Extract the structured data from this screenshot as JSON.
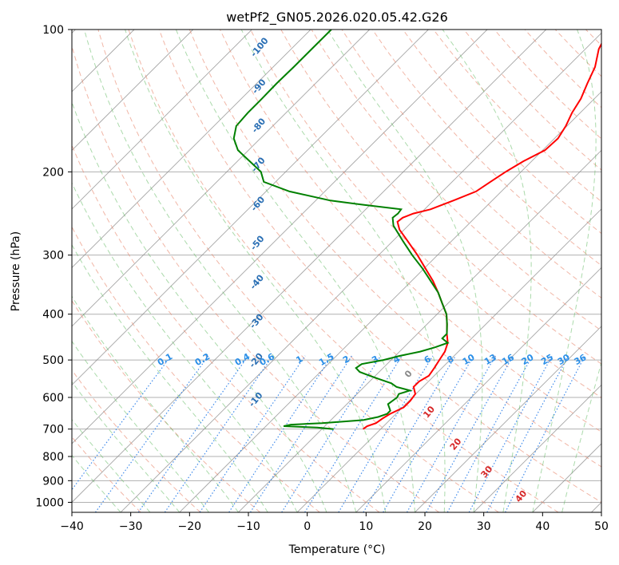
{
  "chart_data": {
    "type": "line",
    "title": "wetPf2_GN05.2026.020.05.42.G26",
    "xlabel": "Temperature (°C)",
    "ylabel": "Pressure (hPa)",
    "xlim": [
      -40,
      50
    ],
    "ylim": [
      1050,
      100
    ],
    "x_ticks": [
      -40,
      -30,
      -20,
      -10,
      0,
      10,
      20,
      30,
      40,
      50
    ],
    "y_ticks": [
      100,
      200,
      300,
      400,
      500,
      600,
      700,
      800,
      900,
      1000
    ],
    "skew_factor": 35,
    "colors": {
      "temperature": "#ff0000",
      "dewpoint": "#008000",
      "dry_adiabat": "#e8866a",
      "moist_adiabat": "#66bb66",
      "mixing_ratio": "#1f77e8",
      "isotherm": "#888888",
      "grid": "#b0b0b0"
    },
    "series": [
      {
        "name": "Temperature",
        "points": [
          [
            700,
            -3
          ],
          [
            690,
            -2.8
          ],
          [
            680,
            -1.8
          ],
          [
            665,
            -1.5
          ],
          [
            650,
            -1
          ],
          [
            630,
            0.2
          ],
          [
            610,
            0.2
          ],
          [
            590,
            -0.1
          ],
          [
            570,
            -1.6
          ],
          [
            555,
            -1.6
          ],
          [
            540,
            -0.9
          ],
          [
            520,
            -1.3
          ],
          [
            500,
            -1.8
          ],
          [
            480,
            -2.3
          ],
          [
            460,
            -3.3
          ],
          [
            440,
            -5
          ],
          [
            420,
            -6.6
          ],
          [
            400,
            -8.4
          ],
          [
            380,
            -10.9
          ],
          [
            360,
            -13.5
          ],
          [
            340,
            -16.4
          ],
          [
            320,
            -19.8
          ],
          [
            300,
            -23.4
          ],
          [
            280,
            -27.5
          ],
          [
            265,
            -30.8
          ],
          [
            255,
            -32.5
          ],
          [
            250,
            -32.3
          ],
          [
            245,
            -31.2
          ],
          [
            240,
            -29
          ],
          [
            230,
            -26.6
          ],
          [
            220,
            -24.3
          ],
          [
            210,
            -23.5
          ],
          [
            200,
            -22.6
          ],
          [
            190,
            -21.4
          ],
          [
            180,
            -19.6
          ],
          [
            170,
            -19.4
          ],
          [
            160,
            -20.2
          ],
          [
            150,
            -21.4
          ],
          [
            140,
            -22.3
          ],
          [
            130,
            -23.8
          ],
          [
            120,
            -25.3
          ],
          [
            110,
            -27.7
          ],
          [
            100,
            -29.3
          ]
        ]
      },
      {
        "name": "Dewpoint",
        "points": [
          [
            700,
            -8
          ],
          [
            695,
            -11
          ],
          [
            690,
            -17
          ],
          [
            685,
            -16
          ],
          [
            680,
            -11
          ],
          [
            670,
            -4.5
          ],
          [
            660,
            -2.5
          ],
          [
            650,
            -1.5
          ],
          [
            640,
            -1.5
          ],
          [
            620,
            -3
          ],
          [
            600,
            -2.6
          ],
          [
            590,
            -2.9
          ],
          [
            580,
            -1.6
          ],
          [
            570,
            -4.5
          ],
          [
            560,
            -6
          ],
          [
            550,
            -8.5
          ],
          [
            540,
            -10.9
          ],
          [
            530,
            -13.3
          ],
          [
            520,
            -14.6
          ],
          [
            510,
            -14.3
          ],
          [
            500,
            -11.3
          ],
          [
            490,
            -9.2
          ],
          [
            480,
            -6.5
          ],
          [
            470,
            -4.7
          ],
          [
            460,
            -3.3
          ],
          [
            450,
            -5
          ],
          [
            440,
            -5
          ],
          [
            420,
            -6.6
          ],
          [
            400,
            -8.4
          ],
          [
            380,
            -10.9
          ],
          [
            360,
            -13.5
          ],
          [
            340,
            -16.8
          ],
          [
            320,
            -20.3
          ],
          [
            300,
            -24.3
          ],
          [
            280,
            -28.3
          ],
          [
            260,
            -32.5
          ],
          [
            250,
            -34
          ],
          [
            245,
            -33.8
          ],
          [
            240,
            -34
          ],
          [
            235,
            -41
          ],
          [
            230,
            -47.5
          ],
          [
            220,
            -56
          ],
          [
            210,
            -62
          ],
          [
            200,
            -64.2
          ],
          [
            190,
            -67.9
          ],
          [
            180,
            -71.8
          ],
          [
            170,
            -74.5
          ],
          [
            160,
            -76.2
          ],
          [
            150,
            -76.5
          ],
          [
            140,
            -76.5
          ],
          [
            130,
            -76.6
          ],
          [
            120,
            -76.5
          ],
          [
            110,
            -76.5
          ],
          [
            100,
            -76.5
          ]
        ]
      }
    ],
    "dry_adiabat_labels": [
      "-100",
      "-90",
      "-80",
      "-70",
      "-60",
      "-50",
      "-40",
      "-30",
      "-20",
      "-10"
    ],
    "mixing_ratio_labels": [
      "0.1",
      "0.2",
      "0.4",
      "0.6",
      "1",
      "1.5",
      "2",
      "3",
      "4",
      "6",
      "8",
      "10",
      "13",
      "16",
      "20",
      "25",
      "30",
      "36"
    ],
    "moist_adiabat_labels": [
      "0",
      "10",
      "20",
      "30",
      "40"
    ]
  }
}
